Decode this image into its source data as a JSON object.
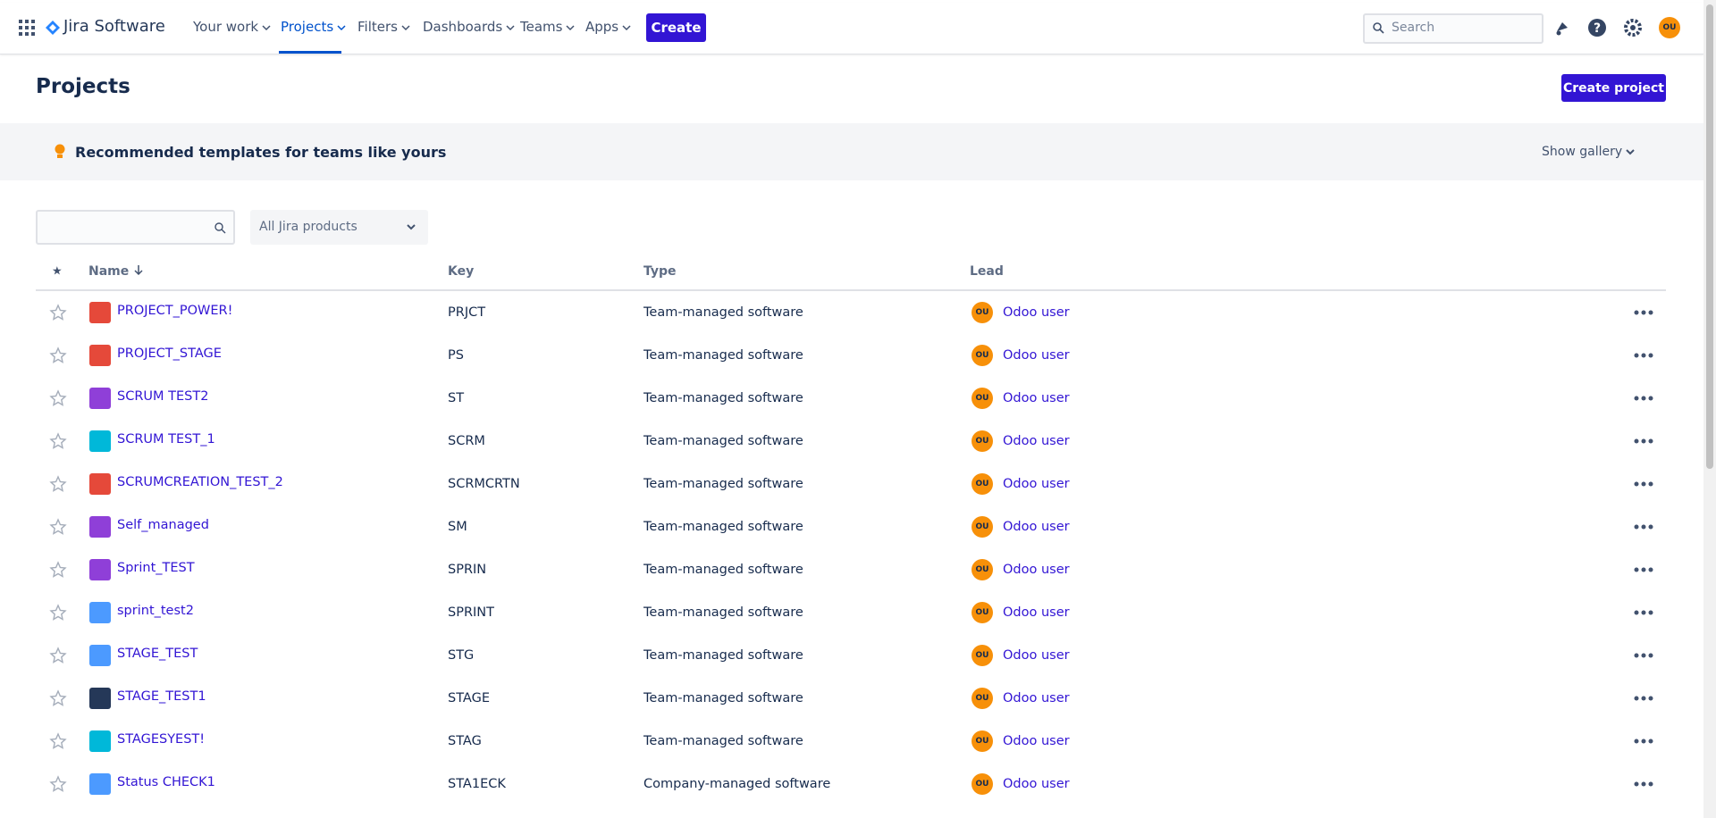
{
  "header": {
    "logo": "Jira Software",
    "nav": [
      "Your work",
      "Projects",
      "Filters",
      "Dashboards",
      "Teams",
      "Apps"
    ],
    "create": "Create",
    "search_placeholder": "Search",
    "profile_initials": "OU"
  },
  "page": {
    "title": "Projects",
    "create_project": "Create project",
    "banner": "Recommended templates for teams like yours",
    "show_gallery": "Show gallery",
    "product_filter": "All Jira products"
  },
  "table": {
    "columns": [
      "Name",
      "Key",
      "Type",
      "Lead"
    ],
    "lead_initials": "OU",
    "rows": [
      [
        "PROJECT_POWER!",
        "PRJCT",
        "Team-managed software",
        "Odoo user"
      ],
      [
        "PROJECT_STAGE",
        "PS",
        "Team-managed software",
        "Odoo user"
      ],
      [
        "SCRUM TEST2",
        "ST",
        "Team-managed software",
        "Odoo user"
      ],
      [
        "SCRUM TEST_1",
        "SCRM",
        "Team-managed software",
        "Odoo user"
      ],
      [
        "SCRUMCREATION_TEST_2",
        "SCRMCRTN",
        "Team-managed software",
        "Odoo user"
      ],
      [
        "Self_managed",
        "SM",
        "Team-managed software",
        "Odoo user"
      ],
      [
        "Sprint_TEST",
        "SPRIN",
        "Team-managed software",
        "Odoo user"
      ],
      [
        "sprint_test2",
        "SPRINT",
        "Team-managed software",
        "Odoo user"
      ],
      [
        "STAGE_TEST",
        "STG",
        "Team-managed software",
        "Odoo user"
      ],
      [
        "STAGE_TEST1",
        "STAGE",
        "Team-managed software",
        "Odoo user"
      ],
      [
        "STAGESYEST!",
        "STAG",
        "Team-managed software",
        "Odoo user"
      ],
      [
        "Status CHECK1",
        "STA1ECK",
        "Company-managed software",
        "Odoo user"
      ]
    ]
  }
}
